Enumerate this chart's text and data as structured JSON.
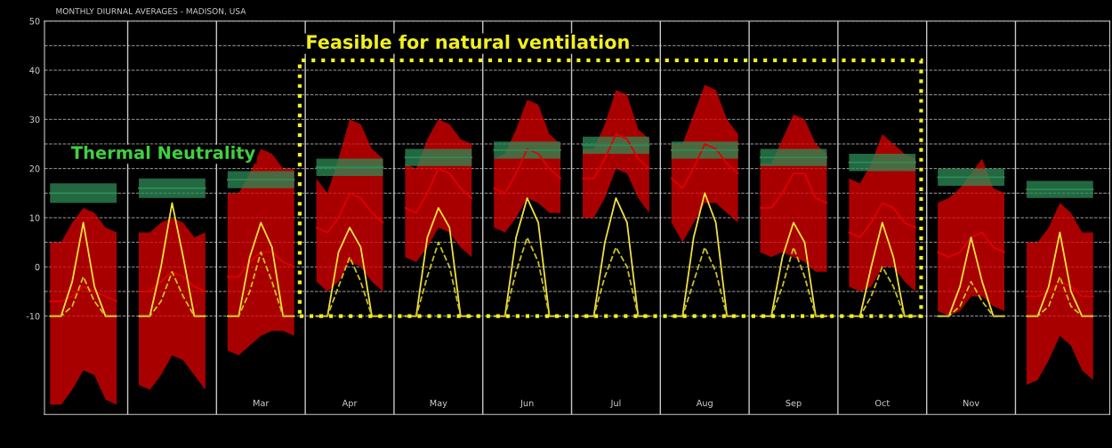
{
  "chart_data": {
    "type": "line",
    "title": "MONTHLY DIURNAL AVERAGES - MADISON, USA",
    "annotations": [
      "Thermal Neutrality",
      "Feasible for natural ventilation"
    ],
    "categories": [
      null,
      null,
      null,
      null,
      null,
      null,
      null,
      null,
      null,
      null,
      null,
      null,
      null,
      null,
      null,
      null,
      null,
      null,
      null,
      "Mar",
      null,
      null,
      null,
      null,
      null,
      null,
      null,
      "Apr",
      null,
      null,
      null,
      null,
      null,
      null,
      null,
      "May",
      null,
      null,
      null,
      null,
      null,
      null,
      null,
      "Jun",
      null,
      null,
      null,
      null,
      null,
      null,
      null,
      "Jul",
      null,
      null,
      null,
      null,
      null,
      null,
      null,
      "Aug",
      null,
      null,
      null,
      null,
      null,
      null,
      null,
      "Sep",
      null,
      null,
      null,
      null,
      null,
      null,
      null,
      "Oct",
      null,
      null,
      null,
      null,
      null,
      null,
      null,
      "Nov",
      null,
      null,
      null,
      null,
      null,
      null,
      null,
      null,
      null,
      null,
      null,
      null
    ],
    "series": [
      {
        "color": "#e00000",
        "line_style": "solid",
        "values": [
          -7,
          -7,
          -6,
          -4,
          -5,
          -6,
          -7,
          null,
          -5,
          -5,
          -3,
          -1,
          -2,
          -4,
          -5,
          null,
          -2,
          -2,
          1,
          3,
          3,
          1,
          0,
          null,
          8,
          7,
          10,
          15,
          14,
          11,
          9,
          null,
          12,
          11,
          15,
          20,
          19,
          16,
          14,
          null,
          16,
          15,
          19,
          24,
          23,
          20,
          18,
          null,
          18,
          18,
          22,
          27,
          26,
          22,
          20,
          null,
          18,
          16,
          20,
          25,
          24,
          21,
          19,
          null,
          12,
          12,
          15,
          19,
          19,
          14,
          13,
          null,
          7,
          6,
          9,
          13,
          12,
          9,
          8,
          null,
          3,
          2,
          3,
          6,
          7,
          4,
          3,
          null,
          -6,
          -6,
          -5,
          -3,
          -4,
          -6,
          -6,
          null
        ],
        "upper": [
          5,
          5,
          9,
          12,
          11,
          8,
          7,
          null,
          7,
          7,
          9,
          10,
          9,
          6,
          7,
          null,
          15,
          15,
          19,
          24,
          23,
          20,
          20,
          null,
          18,
          15,
          22,
          30,
          29,
          24,
          22,
          null,
          21,
          20,
          26,
          30,
          29,
          26,
          25,
          null,
          22,
          23,
          28,
          34,
          33,
          27,
          25,
          null,
          24,
          24,
          29,
          36,
          35,
          28,
          26,
          null,
          25,
          25,
          31,
          37,
          36,
          30,
          27,
          null,
          21,
          21,
          26,
          31,
          30,
          25,
          23,
          null,
          18,
          17,
          21,
          27,
          25,
          23,
          22,
          null,
          13,
          14,
          16,
          19,
          22,
          16,
          15,
          null,
          5,
          5,
          8,
          13,
          11,
          7,
          7,
          null
        ],
        "lower": [
          -28,
          -28,
          -25,
          -21,
          -22,
          -27,
          -28,
          null,
          -24,
          -25,
          -22,
          -18,
          -19,
          -22,
          -25,
          null,
          -17,
          -18,
          -16,
          -14,
          -13,
          -13,
          -14,
          null,
          -3,
          -5,
          -3,
          1,
          0,
          -3,
          -5,
          null,
          2,
          1,
          4,
          8,
          7,
          4,
          2,
          null,
          8,
          7,
          10,
          14,
          13,
          11,
          11,
          null,
          10,
          10,
          14,
          20,
          19,
          14,
          11,
          null,
          9,
          5,
          9,
          13,
          13,
          11,
          9,
          null,
          3,
          2,
          3,
          2,
          1,
          -1,
          -1,
          null,
          -4,
          -5,
          -4,
          0,
          0,
          -3,
          -5,
          null,
          -9,
          -10,
          -9,
          -6,
          -6,
          -8,
          -9,
          null,
          -24,
          -23,
          -19,
          -14,
          -16,
          -21,
          -23,
          null
        ]
      },
      {
        "color": "#f0e040",
        "line_style": "solid",
        "values": [
          -10,
          -10,
          -3,
          9,
          -4,
          -10,
          -10,
          null,
          -10,
          -10,
          0,
          13,
          2,
          -10,
          -10,
          null,
          -10,
          -10,
          2,
          9,
          4,
          -10,
          -10,
          null,
          -10,
          -10,
          3,
          8,
          4,
          -10,
          -10,
          null,
          -10,
          -10,
          6,
          12,
          8,
          -10,
          -10,
          null,
          -10,
          -10,
          6,
          14,
          9,
          -10,
          -10,
          null,
          -10,
          -10,
          5,
          14,
          9,
          -10,
          -10,
          null,
          -10,
          -10,
          6,
          15,
          9,
          -10,
          -10,
          null,
          -10,
          -10,
          2,
          9,
          5,
          -10,
          -10,
          null,
          -10,
          -10,
          0,
          9,
          2,
          -10,
          -10,
          null,
          -10,
          -10,
          -4,
          6,
          -3,
          -10,
          -10,
          null,
          -10,
          -10,
          -4,
          7,
          -5,
          -10,
          -10,
          null
        ]
      },
      {
        "color": "#c8c020",
        "line_style": "dashed",
        "values": [
          -10,
          -10,
          -8,
          -2,
          -7,
          -10,
          -10,
          null,
          -10,
          -10,
          -7,
          -1,
          -6,
          -10,
          -10,
          null,
          -10,
          -10,
          -5,
          3,
          -3,
          -10,
          -10,
          null,
          -10,
          -10,
          -4,
          2,
          -3,
          -10,
          -10,
          null,
          -10,
          -10,
          -2,
          5,
          0,
          -10,
          -10,
          null,
          -10,
          -10,
          -1,
          6,
          1,
          -10,
          -10,
          null,
          -10,
          -10,
          -2,
          4,
          0,
          -10,
          -10,
          null,
          -10,
          -10,
          -3,
          4,
          -1,
          -10,
          -10,
          null,
          -10,
          -10,
          -4,
          4,
          -2,
          -10,
          -10,
          null,
          -10,
          -10,
          -6,
          0,
          -4,
          -10,
          -10,
          null,
          -10,
          -10,
          -8,
          -3,
          -7,
          -10,
          -10,
          null,
          -10,
          -10,
          -8,
          -2,
          -8,
          -10,
          -10,
          null
        ]
      },
      {
        "color": "#2e8b57",
        "line_style": "solid",
        "values": [
          15,
          15,
          15,
          15,
          15,
          15,
          15,
          null,
          16,
          16,
          16,
          16,
          16,
          16,
          16,
          null,
          17.75,
          17.75,
          17.75,
          17.75,
          17.75,
          17.75,
          17.75,
          null,
          20.25,
          20.25,
          20.25,
          20.25,
          20.25,
          20.25,
          20.25,
          null,
          22.25,
          22.25,
          22.25,
          22.25,
          22.25,
          22.25,
          22.25,
          null,
          23.75,
          23.75,
          23.75,
          23.75,
          23.75,
          23.75,
          23.75,
          null,
          24.75,
          24.75,
          24.75,
          24.75,
          24.75,
          24.75,
          24.75,
          null,
          23.75,
          23.75,
          23.75,
          23.75,
          23.75,
          23.75,
          23.75,
          null,
          22.25,
          22.25,
          22.25,
          22.25,
          22.25,
          22.25,
          22.25,
          null,
          21.25,
          21.25,
          21.25,
          21.25,
          21.25,
          21.25,
          21.25,
          null,
          18.25,
          18.25,
          18.25,
          18.25,
          18.25,
          18.25,
          18.25,
          null,
          15.75,
          15.75,
          15.75,
          15.75,
          15.75,
          15.75,
          15.75,
          null
        ],
        "lower": [
          13,
          13,
          13,
          13,
          13,
          13,
          13,
          null,
          14,
          14,
          14,
          14,
          14,
          14,
          14,
          null,
          16,
          16,
          16,
          16,
          16,
          16,
          16,
          null,
          18.5,
          18.5,
          18.5,
          18.5,
          18.5,
          18.5,
          18.5,
          null,
          20.5,
          20.5,
          20.5,
          20.5,
          20.5,
          20.5,
          20.5,
          null,
          22,
          22,
          22,
          22,
          22,
          22,
          22,
          null,
          23,
          23,
          23,
          23,
          23,
          23,
          23,
          null,
          22,
          22,
          22,
          22,
          22,
          22,
          22,
          null,
          20.5,
          20.5,
          20.5,
          20.5,
          20.5,
          20.5,
          20.5,
          null,
          19.5,
          19.5,
          19.5,
          19.5,
          19.5,
          19.5,
          19.5,
          null,
          16.5,
          16.5,
          16.5,
          16.5,
          16.5,
          16.5,
          16.5,
          null,
          14,
          14,
          14,
          14,
          14,
          14,
          14,
          null
        ],
        "upper": [
          17,
          17,
          17,
          17,
          17,
          17,
          17,
          null,
          18,
          18,
          18,
          18,
          18,
          18,
          18,
          null,
          19.5,
          19.5,
          19.5,
          19.5,
          19.5,
          19.5,
          19.5,
          null,
          22,
          22,
          22,
          22,
          22,
          22,
          22,
          null,
          24,
          24,
          24,
          24,
          24,
          24,
          24,
          null,
          25.5,
          25.5,
          25.5,
          25.5,
          25.5,
          25.5,
          25.5,
          null,
          26.5,
          26.5,
          26.5,
          26.5,
          26.5,
          26.5,
          26.5,
          null,
          25.5,
          25.5,
          25.5,
          25.5,
          25.5,
          25.5,
          25.5,
          null,
          24,
          24,
          24,
          24,
          24,
          24,
          24,
          null,
          23,
          23,
          23,
          23,
          23,
          23,
          23,
          null,
          20,
          20,
          20,
          20,
          20,
          20,
          20,
          null,
          17.5,
          17.5,
          17.5,
          17.5,
          17.5,
          17.5,
          17.5,
          null
        ]
      }
    ],
    "ylim": [
      -30,
      50
    ],
    "yticks": [
      -10,
      {
        "value": -5,
        "label": null
      },
      0,
      {
        "value": 5,
        "label": null
      },
      10,
      {
        "value": 15,
        "label": null
      },
      20,
      {
        "value": 25,
        "label": null
      },
      30,
      {
        "value": 35,
        "label": null
      },
      40,
      {
        "value": 45,
        "label": null
      },
      50
    ],
    "grid": "y",
    "legend": false
  }
}
